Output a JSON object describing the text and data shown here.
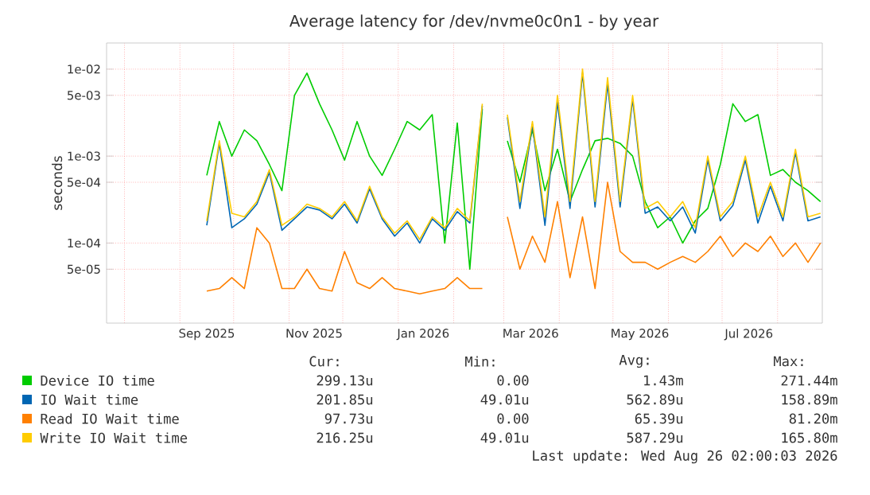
{
  "chart_data": {
    "type": "line",
    "title": "Average latency for /dev/nvme0c0n1 - by year",
    "ylabel": "seconds",
    "x": [
      "2025-09-16",
      "2025-09-23",
      "2025-09-30",
      "2025-10-07",
      "2025-10-14",
      "2025-10-21",
      "2025-10-28",
      "2025-11-04",
      "2025-11-11",
      "2025-11-18",
      "2025-11-25",
      "2025-12-02",
      "2025-12-09",
      "2025-12-16",
      "2025-12-23",
      "2025-12-30",
      "2026-01-06",
      "2026-01-13",
      "2026-01-20",
      "2026-01-27",
      "2026-02-03",
      "2026-02-10",
      "2026-02-17",
      "2026-02-24",
      "2026-03-03",
      "2026-03-10",
      "2026-03-17",
      "2026-03-24",
      "2026-03-31",
      "2026-04-07",
      "2026-04-14",
      "2026-04-21",
      "2026-04-28",
      "2026-05-05",
      "2026-05-12",
      "2026-05-19",
      "2026-05-26",
      "2026-06-02",
      "2026-06-09",
      "2026-06-16",
      "2026-06-23",
      "2026-06-30",
      "2026-07-07",
      "2026-07-14",
      "2026-07-21",
      "2026-07-28",
      "2026-08-04",
      "2026-08-11",
      "2026-08-18",
      "2026-08-25"
    ],
    "series": [
      {
        "name": "Device IO time",
        "color": "#00cc00",
        "values": [
          0.0006,
          0.0025,
          0.001,
          0.002,
          0.0015,
          0.0008,
          0.0004,
          0.005,
          0.009,
          0.004,
          0.002,
          0.0009,
          0.0025,
          0.001,
          0.0006,
          0.0012,
          0.0025,
          0.002,
          0.003,
          0.0001,
          0.0024,
          5e-05,
          0.0035,
          null,
          0.0015,
          0.0005,
          0.002,
          0.0004,
          0.0012,
          0.0003,
          0.0007,
          0.0015,
          0.0016,
          0.0014,
          0.001,
          0.0003,
          0.00015,
          0.0002,
          0.0001,
          0.00018,
          0.00025,
          0.0008,
          0.004,
          0.0025,
          0.003,
          0.0006,
          0.0007,
          0.0005,
          0.0004,
          0.0003
        ]
      },
      {
        "name": "IO Wait time",
        "color": "#0066b3",
        "values": [
          0.00016,
          0.0014,
          0.00015,
          0.00019,
          0.00028,
          0.00065,
          0.00014,
          0.00019,
          0.00026,
          0.00024,
          0.00019,
          0.00028,
          0.00017,
          0.00042,
          0.00019,
          0.00012,
          0.00017,
          0.0001,
          0.00019,
          0.00014,
          0.00023,
          0.00017,
          0.0038,
          null,
          0.0028,
          0.00025,
          0.0023,
          0.00016,
          0.0042,
          0.00025,
          0.009,
          0.00026,
          0.0068,
          0.00026,
          0.0045,
          0.00022,
          0.00026,
          0.00018,
          0.00026,
          0.00013,
          0.0009,
          0.00018,
          0.00027,
          0.0009,
          0.00017,
          0.00045,
          0.00018,
          0.0011,
          0.00018,
          0.0002
        ]
      },
      {
        "name": "Read IO Wait time",
        "color": "#ff8000",
        "values": [
          2.8e-05,
          3e-05,
          4e-05,
          3e-05,
          0.00015,
          0.0001,
          3e-05,
          3e-05,
          5e-05,
          3e-05,
          2.8e-05,
          8e-05,
          3.5e-05,
          3e-05,
          4e-05,
          3e-05,
          2.8e-05,
          2.6e-05,
          2.8e-05,
          3e-05,
          4e-05,
          3e-05,
          3e-05,
          null,
          0.0002,
          5e-05,
          0.00012,
          6e-05,
          0.0003,
          4e-05,
          0.0002,
          3e-05,
          0.0005,
          8e-05,
          6e-05,
          6e-05,
          5e-05,
          6e-05,
          7e-05,
          6e-05,
          8e-05,
          0.00012,
          7e-05,
          0.0001,
          8e-05,
          0.00012,
          7e-05,
          0.0001,
          6e-05,
          0.0001
        ]
      },
      {
        "name": "Write IO Wait time",
        "color": "#ffcc00",
        "values": [
          0.00018,
          0.0015,
          0.00022,
          0.0002,
          0.0003,
          0.0007,
          0.00016,
          0.0002,
          0.00028,
          0.00025,
          0.0002,
          0.0003,
          0.00018,
          0.00045,
          0.0002,
          0.00013,
          0.00018,
          0.00011,
          0.0002,
          0.00015,
          0.00025,
          0.00018,
          0.004,
          null,
          0.003,
          0.0003,
          0.0025,
          0.0002,
          0.005,
          0.0003,
          0.01,
          0.0003,
          0.008,
          0.0003,
          0.005,
          0.00025,
          0.0003,
          0.0002,
          0.0003,
          0.00015,
          0.001,
          0.0002,
          0.0003,
          0.001,
          0.0002,
          0.0005,
          0.0002,
          0.0012,
          0.0002,
          0.00022
        ]
      }
    ],
    "xlim": [
      "2025-07-22",
      "2026-08-26"
    ],
    "xticks": [
      {
        "value": "2025-08-01",
        "label": null
      },
      {
        "value": "2025-09-01",
        "label": null
      },
      {
        "value": "2025-10-01",
        "label": null
      },
      {
        "value": "2025-11-01",
        "label": null
      },
      {
        "value": "2025-12-01",
        "label": null
      },
      {
        "value": "2026-01-01",
        "label": null
      },
      {
        "value": "2026-02-01",
        "label": null
      },
      {
        "value": "2026-03-01",
        "label": null
      },
      {
        "value": "2026-04-01",
        "label": null
      },
      {
        "value": "2026-05-01",
        "label": null
      },
      {
        "value": "2026-06-01",
        "label": null
      },
      {
        "value": "2026-07-01",
        "label": null
      },
      {
        "value": "2026-08-01",
        "label": null
      },
      {
        "value": "2025-09-16",
        "label": "Sep 2025"
      },
      {
        "value": "2025-11-15",
        "label": "Nov 2025"
      },
      {
        "value": "2026-01-15",
        "label": "Jan 2026"
      },
      {
        "value": "2026-03-16",
        "label": "Mar 2026"
      },
      {
        "value": "2026-05-16",
        "label": "May 2026"
      },
      {
        "value": "2026-07-16",
        "label": "Jul 2026"
      }
    ],
    "ylim": [
      1.2e-05,
      0.02
    ],
    "yticks": [
      {
        "value": 0.01,
        "label": "1e-02"
      },
      {
        "value": 0.005,
        "label": "5e-03"
      },
      {
        "value": 0.001,
        "label": "1e-03"
      },
      {
        "value": 0.0005,
        "label": "5e-04"
      },
      {
        "value": 0.0001,
        "label": "1e-04"
      },
      {
        "value": 5e-05,
        "label": "5e-05"
      }
    ],
    "log": "y",
    "grid": true,
    "legend": "bottom",
    "marker": "none",
    "line_style": "solid",
    "annotations": [
      "Cur:",
      "Min:",
      "Avg:",
      "Max:",
      "299.13u",
      "0.00",
      "1.43m",
      "271.44m",
      "201.85u",
      "49.01u",
      "562.89u",
      "158.89m",
      "97.73u",
      "0.00",
      "65.39u",
      "81.20m",
      "216.25u",
      "49.01u",
      "587.29u",
      "165.80m",
      "Last update: Wed Aug 26 02:00:03 2026"
    ]
  }
}
